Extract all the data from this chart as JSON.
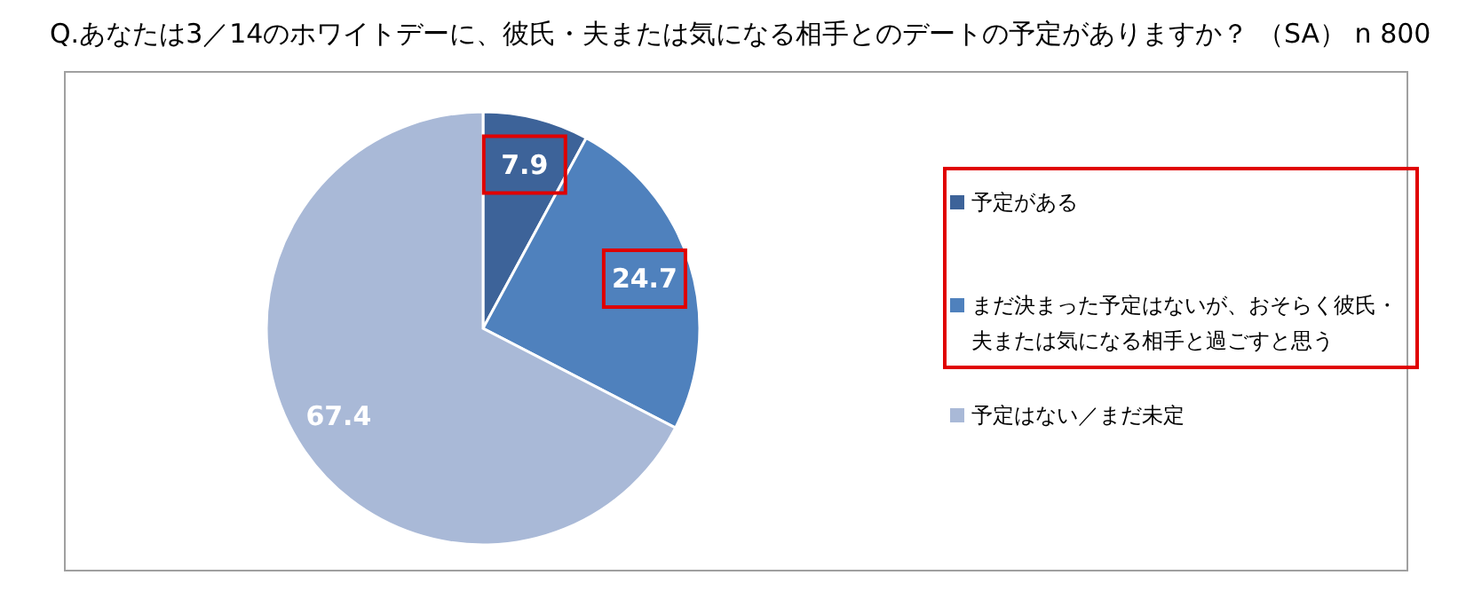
{
  "chart_data": {
    "type": "pie",
    "title": "Q.あなたは3／14のホワイトデーに、彼氏・夫または気になる相手とのデートの予定がありますか？ （SA） n 800",
    "categories": [
      "予定がある",
      "まだ決まった予定はないが、おそらく彼氏・夫または気になる相手と過ごすと思う",
      "予定はない／まだ未定"
    ],
    "values": [
      7.9,
      24.7,
      67.4
    ],
    "colors": [
      "#3d6399",
      "#4f81bd",
      "#a9b9d7"
    ],
    "data_labels": true,
    "legend": "right"
  }
}
